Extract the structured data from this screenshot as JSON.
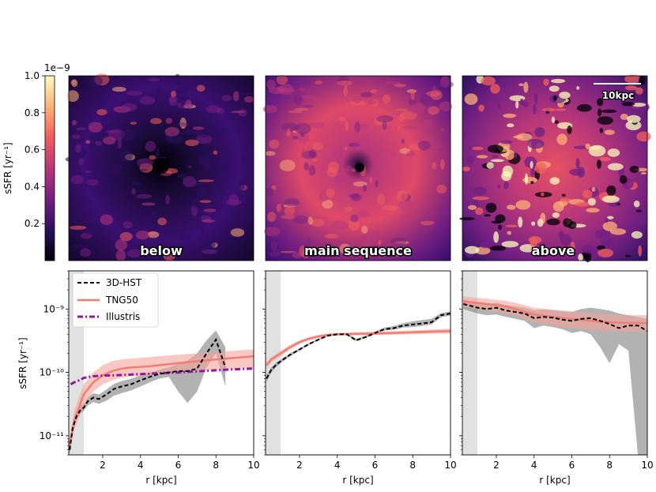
{
  "colorbar": {
    "exponent_label": "1e−9",
    "ylabel": "sSFR [yr⁻¹]",
    "ticks": [
      "1.0",
      "0.8",
      "0.6",
      "0.4",
      "0.2"
    ],
    "colormap": [
      "#000004",
      "#2c115f",
      "#721f81",
      "#b73779",
      "#f1605d",
      "#feb078",
      "#fcfdbf"
    ]
  },
  "maps": [
    {
      "label": "below"
    },
    {
      "label": "main sequence"
    },
    {
      "label": "above",
      "scalebar": "10kpc"
    }
  ],
  "chart_data": {
    "type": "line",
    "ylabel": "sSFR [yr⁻¹]",
    "yscale": "log",
    "ylim": [
      5e-12,
      4e-09
    ],
    "xlim": [
      0.2,
      10
    ],
    "xlabel": "r [kpc]",
    "x_ticks": [
      "2",
      "4",
      "6",
      "8",
      "10"
    ],
    "y_ticks": [
      "10⁻¹¹",
      "10⁻¹⁰",
      "10⁻⁹"
    ],
    "y_tick_values": [
      1e-11,
      1e-10,
      1e-09
    ],
    "legend": [
      "3D-HST",
      "TNG50",
      "Illustris"
    ],
    "colors": {
      "hst": "#000000",
      "hst_band": "#7f7f7f",
      "tng": "#f07e74",
      "tng_band": "#f5a39a",
      "illustris": "#8b1a9c",
      "shade": "#d9d9d9"
    },
    "shaded_region_kpc": [
      0.2,
      1.0
    ],
    "panels": [
      {
        "name": "below",
        "hst": {
          "x": [
            0.25,
            0.4,
            0.6,
            0.8,
            1.0,
            1.2,
            1.5,
            1.8,
            2.2,
            2.6,
            3.0,
            3.5,
            4.0,
            4.5,
            5.0,
            5.5,
            6.0,
            6.5,
            7.0,
            7.5,
            8.0,
            8.5
          ],
          "y": [
            6e-12,
            1.3e-11,
            2e-11,
            2.5e-11,
            2.8e-11,
            3.5e-11,
            4e-11,
            3.8e-11,
            4.5e-11,
            5.5e-11,
            6e-11,
            6.5e-11,
            7.5e-11,
            8.5e-11,
            9.5e-11,
            1e-10,
            1.05e-10,
            1.05e-10,
            1.15e-10,
            2e-10,
            3.3e-10,
            1.2e-10
          ],
          "lo": [
            5e-12,
            1.1e-11,
            1.7e-11,
            2.2e-11,
            2.5e-11,
            3e-11,
            3.4e-11,
            3.2e-11,
            3.6e-11,
            4.3e-11,
            4.7e-11,
            5.2e-11,
            6e-11,
            7e-11,
            8e-11,
            8.5e-11,
            5e-11,
            3.3e-11,
            5e-11,
            1.2e-10,
            2e-10,
            6e-11
          ],
          "hi": [
            8e-12,
            1.6e-11,
            2.4e-11,
            2.9e-11,
            3.2e-11,
            4e-11,
            4.7e-11,
            4.5e-11,
            5.4e-11,
            6.6e-11,
            7.3e-11,
            7.9e-11,
            9e-11,
            1e-10,
            1.1e-10,
            1.2e-10,
            1.35e-10,
            1.55e-10,
            2e-10,
            3.2e-10,
            4.6e-10,
            2.5e-10
          ]
        },
        "tng": {
          "x": [
            0.2,
            0.5,
            1.0,
            1.5,
            2.0,
            2.5,
            3.0,
            3.5,
            4.0,
            4.5,
            5.0,
            5.5,
            6.0,
            6.5,
            7.0,
            7.5,
            8.0,
            8.5,
            9.0,
            9.5,
            10.0
          ],
          "y": [
            6e-12,
            1.8e-11,
            4.5e-11,
            7e-11,
            9e-11,
            1.05e-10,
            1.15e-10,
            1.2e-10,
            1.22e-10,
            1.25e-10,
            1.3e-10,
            1.35e-10,
            1.4e-10,
            1.45e-10,
            1.5e-10,
            1.55e-10,
            1.6e-10,
            1.65e-10,
            1.7e-10,
            1.75e-10,
            1.8e-10
          ],
          "lo": [
            5e-12,
            1.3e-11,
            3e-11,
            5e-11,
            6.5e-11,
            7.5e-11,
            8.3e-11,
            8.7e-11,
            8.8e-11,
            9e-11,
            9.3e-11,
            9.6e-11,
            1e-10,
            1.03e-10,
            1.06e-10,
            1.08e-10,
            1.1e-10,
            1.12e-10,
            1.14e-10,
            1.16e-10,
            1.18e-10
          ],
          "hi": [
            8e-12,
            2.6e-11,
            6.5e-11,
            1e-10,
            1.3e-10,
            1.5e-10,
            1.6e-10,
            1.65e-10,
            1.7e-10,
            1.75e-10,
            1.8e-10,
            1.85e-10,
            1.9e-10,
            1.95e-10,
            2e-10,
            2.05e-10,
            2.1e-10,
            2.15e-10,
            2.2e-10,
            2.25e-10,
            2.3e-10
          ]
        },
        "illustris": {
          "x": [
            0.3,
            0.5,
            0.8,
            1.0,
            1.5,
            2.0,
            3.0,
            4.0,
            5.0,
            6.0,
            7.0,
            8.0,
            9.0,
            10.0
          ],
          "y": [
            6.5e-11,
            7e-11,
            7.6e-11,
            8.2e-11,
            8.7e-11,
            8.9e-11,
            9.1e-11,
            9.4e-11,
            9.7e-11,
            1e-10,
            1.04e-10,
            1.08e-10,
            1.12e-10,
            1.15e-10
          ]
        }
      },
      {
        "name": "main sequence",
        "hst": {
          "x": [
            0.25,
            0.5,
            0.8,
            1.0,
            1.5,
            2.0,
            2.5,
            3.0,
            3.5,
            4.0,
            4.5,
            5.0,
            5.5,
            6.0,
            6.5,
            7.0,
            7.5,
            8.0,
            8.5,
            9.0,
            9.5,
            10.0
          ],
          "y": [
            8e-11,
            1.1e-10,
            1.35e-10,
            1.5e-10,
            1.9e-10,
            2.3e-10,
            2.8e-10,
            3.3e-10,
            3.8e-10,
            4e-10,
            4e-10,
            3.2e-10,
            3.6e-10,
            4.2e-10,
            4.8e-10,
            5e-10,
            5.5e-10,
            5.7e-10,
            5.9e-10,
            6.2e-10,
            8e-10,
            8.5e-10
          ],
          "lo": [
            7e-11,
            1e-10,
            1.25e-10,
            1.4e-10,
            1.8e-10,
            2.2e-10,
            2.7e-10,
            3.2e-10,
            3.7e-10,
            3.9e-10,
            3.9e-10,
            3.1e-10,
            3.5e-10,
            4e-10,
            4.6e-10,
            4.7e-10,
            5.1e-10,
            5.2e-10,
            5.4e-10,
            5.7e-10,
            7.4e-10,
            7.9e-10
          ],
          "hi": [
            9e-11,
            1.2e-10,
            1.45e-10,
            1.6e-10,
            2e-10,
            2.4e-10,
            2.9e-10,
            3.4e-10,
            3.9e-10,
            4.1e-10,
            4.2e-10,
            3.4e-10,
            3.8e-10,
            4.4e-10,
            5.1e-10,
            5.4e-10,
            6e-10,
            6.4e-10,
            6.7e-10,
            7e-10,
            8.7e-10,
            9.2e-10
          ]
        },
        "tng": {
          "x": [
            0.25,
            0.5,
            1.0,
            1.5,
            2.0,
            2.5,
            3.0,
            3.5,
            4.0,
            5.0,
            6.0,
            7.0,
            8.0,
            9.0,
            10.0
          ],
          "y": [
            1.3e-10,
            1.6e-10,
            2e-10,
            2.5e-10,
            3e-10,
            3.4e-10,
            3.7e-10,
            3.9e-10,
            4e-10,
            4.05e-10,
            4.1e-10,
            4.2e-10,
            4.3e-10,
            4.4e-10,
            4.5e-10
          ],
          "lo": [
            1.15e-10,
            1.45e-10,
            1.8e-10,
            2.3e-10,
            2.8e-10,
            3.2e-10,
            3.5e-10,
            3.7e-10,
            3.8e-10,
            3.85e-10,
            3.9e-10,
            3.95e-10,
            4e-10,
            4.05e-10,
            4.1e-10
          ],
          "hi": [
            1.45e-10,
            1.75e-10,
            2.2e-10,
            2.7e-10,
            3.2e-10,
            3.6e-10,
            3.9e-10,
            4.1e-10,
            4.2e-10,
            4.3e-10,
            4.4e-10,
            4.5e-10,
            4.6e-10,
            4.75e-10,
            4.9e-10
          ]
        }
      },
      {
        "name": "above",
        "hst": {
          "x": [
            0.25,
            0.5,
            1.0,
            1.5,
            2.0,
            2.5,
            3.0,
            3.5,
            4.0,
            4.5,
            5.0,
            5.5,
            6.0,
            6.5,
            7.0,
            7.5,
            8.0,
            8.5,
            9.0,
            9.5,
            10.0
          ],
          "y": [
            1.2e-09,
            1.15e-09,
            1.05e-09,
            1e-09,
            1.05e-09,
            9.5e-10,
            9e-10,
            8.5e-10,
            7.2e-10,
            7.5e-10,
            7.3e-10,
            6.8e-10,
            6.5e-10,
            7e-10,
            7.2e-10,
            6.5e-10,
            5.8e-10,
            5e-10,
            5.5e-10,
            5.5e-10,
            4.5e-10
          ],
          "lo": [
            1e-09,
            9.5e-10,
            8.5e-10,
            8e-10,
            8.2e-10,
            7.5e-10,
            7e-10,
            6.5e-10,
            5e-10,
            5.5e-10,
            5.2e-10,
            4.8e-10,
            4.2e-10,
            4.5e-10,
            4e-10,
            2.5e-10,
            1.4e-10,
            2.8e-10,
            2.2e-10,
            5e-12,
            5e-12
          ],
          "hi": [
            1.4e-09,
            1.35e-09,
            1.25e-09,
            1.2e-09,
            1.25e-09,
            1.15e-09,
            1.1e-09,
            1.05e-09,
            9.5e-10,
            9.8e-10,
            9.6e-10,
            9.2e-10,
            9e-10,
            1e-09,
            1.05e-09,
            1e-09,
            9.5e-10,
            8.5e-10,
            8e-10,
            7.5e-10,
            7e-10
          ]
        },
        "tng": {
          "x": [
            0.25,
            0.5,
            1.0,
            1.5,
            2.0,
            2.5,
            3.0,
            3.5,
            4.0,
            5.0,
            6.0,
            7.0,
            8.0,
            9.0,
            10.0
          ],
          "y": [
            1.35e-09,
            1.3e-09,
            1.25e-09,
            1.2e-09,
            1.15e-09,
            1.1e-09,
            1e-09,
            9e-10,
            8.2e-10,
            7.5e-10,
            7e-10,
            6.5e-10,
            6.2e-10,
            6e-10,
            6e-10
          ],
          "lo": [
            1.1e-09,
            1.05e-09,
            1e-09,
            9.5e-10,
            9e-10,
            8.5e-10,
            7.8e-10,
            7e-10,
            6.2e-10,
            5.5e-10,
            5e-10,
            4.7e-10,
            4.5e-10,
            4.4e-10,
            4.4e-10
          ],
          "hi": [
            1.6e-09,
            1.55e-09,
            1.5e-09,
            1.45e-09,
            1.4e-09,
            1.35e-09,
            1.25e-09,
            1.15e-09,
            1.05e-09,
            9.8e-10,
            9.2e-10,
            8.7e-10,
            8.3e-10,
            8e-10,
            8e-10
          ]
        }
      }
    ]
  }
}
